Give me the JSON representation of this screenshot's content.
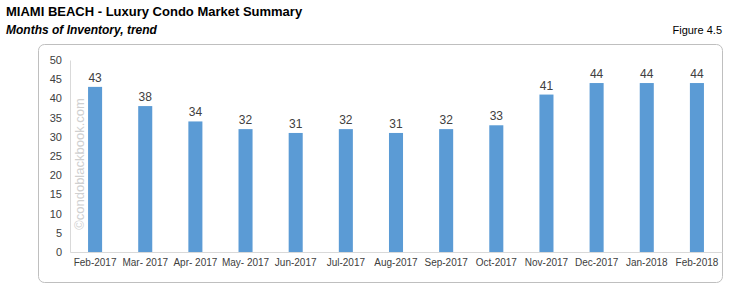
{
  "chart_data": {
    "type": "bar",
    "title": "MIAMI BEACH - Luxury Condo Market Summary",
    "subtitle": "Months of Inventory, trend",
    "annotations": [
      "Figure 4.5",
      "©condoblackbook.com"
    ],
    "categories": [
      "Feb-2017",
      "Mar- 2017",
      "Apr- 2017",
      "May- 2017",
      "Jun-2017",
      "Jul-2017",
      "Aug-2017",
      "Sep-2017",
      "Oct-2017",
      "Nov-2017",
      "Dec-2017",
      "Jan-2018",
      "Feb-2018"
    ],
    "values": [
      43,
      38,
      34,
      32,
      31,
      32,
      31,
      32,
      33,
      41,
      44,
      44,
      44
    ],
    "color": "#5b9bd5",
    "ylim": [
      0,
      50
    ],
    "yticks": [
      0,
      5,
      10,
      15,
      20,
      25,
      30,
      35,
      40,
      45,
      50
    ],
    "grid": false,
    "data_labels": true
  }
}
